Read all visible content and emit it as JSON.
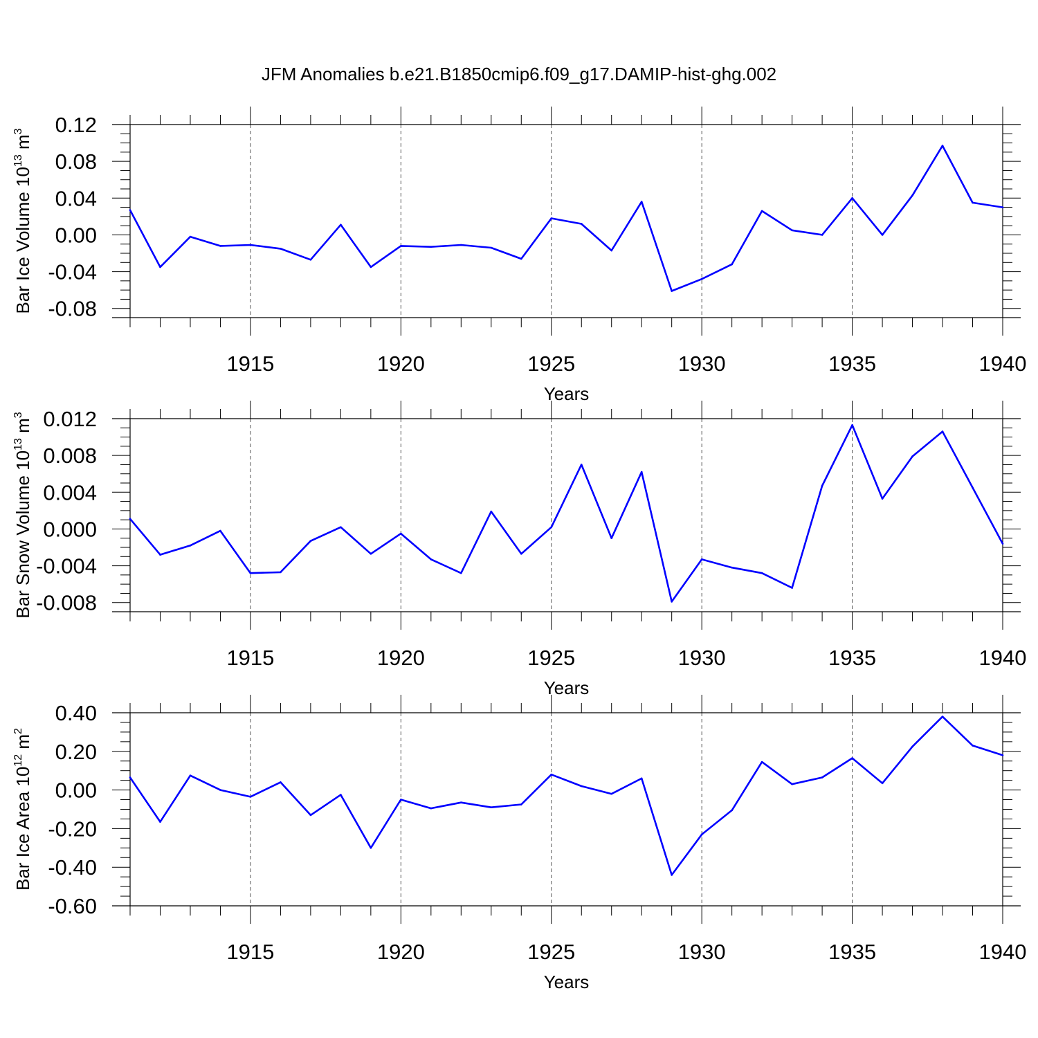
{
  "chart_data": [
    {
      "type": "line",
      "title": "JFM Anomalies b.e21.B1850cmip6.f09_g17.DAMIP-hist-ghg.002",
      "xlabel": "Years",
      "ylabel": "Bar Ice Volume 10",
      "ylabel_exp": "13",
      "ylabel_unit": " m",
      "ylabel_unit_exp": "3",
      "xlim": [
        1911,
        1940
      ],
      "ylim": [
        -0.09,
        0.12
      ],
      "xticks": [
        "1915",
        "1920",
        "1925",
        "1930",
        "1935",
        "1940"
      ],
      "yticks": [
        "-0.08",
        "-0.04",
        "0.00",
        "0.04",
        "0.08",
        "0.12"
      ],
      "grid": "dashed vertical at major x ticks",
      "line_color": "#0000ff",
      "series": [
        {
          "x": [
            1911,
            1912,
            1913,
            1914,
            1915,
            1916,
            1917,
            1918,
            1919,
            1920,
            1921,
            1922,
            1923,
            1924,
            1925,
            1926,
            1927,
            1928,
            1929,
            1930,
            1931,
            1932,
            1933,
            1934,
            1935,
            1936,
            1937,
            1938,
            1939,
            1940
          ],
          "values": [
            0.027,
            -0.035,
            -0.002,
            -0.012,
            -0.011,
            -0.015,
            -0.027,
            0.011,
            -0.035,
            -0.012,
            -0.013,
            -0.011,
            -0.014,
            -0.026,
            0.018,
            0.012,
            -0.017,
            0.036,
            -0.061,
            -0.048,
            -0.032,
            0.026,
            0.005,
            0.0,
            0.04,
            0.0,
            0.043,
            0.097,
            0.035,
            0.03
          ]
        }
      ]
    },
    {
      "type": "line",
      "title": "",
      "xlabel": "Years",
      "ylabel": "Bar Snow Volume 10",
      "ylabel_exp": "13",
      "ylabel_unit": " m",
      "ylabel_unit_exp": "3",
      "xlim": [
        1911,
        1940
      ],
      "ylim": [
        -0.009,
        0.012
      ],
      "xticks": [
        "1915",
        "1920",
        "1925",
        "1930",
        "1935",
        "1940"
      ],
      "yticks": [
        "-0.008",
        "-0.004",
        "0.000",
        "0.004",
        "0.008",
        "0.012"
      ],
      "grid": "dashed vertical at major x ticks",
      "line_color": "#0000ff",
      "series": [
        {
          "x": [
            1911,
            1912,
            1913,
            1914,
            1915,
            1916,
            1917,
            1918,
            1919,
            1920,
            1921,
            1922,
            1923,
            1924,
            1925,
            1926,
            1927,
            1928,
            1929,
            1930,
            1931,
            1932,
            1933,
            1934,
            1935,
            1936,
            1937,
            1938,
            1939,
            1940
          ],
          "values": [
            0.0011,
            -0.0028,
            -0.0018,
            -0.0002,
            -0.0048,
            -0.0047,
            -0.0013,
            0.0002,
            -0.0027,
            -0.0005,
            -0.0033,
            -0.0048,
            0.0019,
            -0.0027,
            0.0002,
            0.007,
            -0.001,
            0.0062,
            -0.0079,
            -0.0033,
            -0.0042,
            -0.0048,
            -0.0064,
            0.0047,
            0.0113,
            0.0033,
            0.0079,
            0.0106,
            0.0045,
            -0.0016
          ]
        }
      ]
    },
    {
      "type": "line",
      "title": "",
      "xlabel": "Years",
      "ylabel": "Bar Ice Area 10",
      "ylabel_exp": "12",
      "ylabel_unit": " m",
      "ylabel_unit_exp": "2",
      "xlim": [
        1911,
        1940
      ],
      "ylim": [
        -0.6,
        0.4
      ],
      "xticks": [
        "1915",
        "1920",
        "1925",
        "1930",
        "1935",
        "1940"
      ],
      "yticks": [
        "-0.60",
        "-0.40",
        "-0.20",
        "0.00",
        "0.20",
        "0.40"
      ],
      "grid": "dashed vertical at major x ticks",
      "line_color": "#0000ff",
      "series": [
        {
          "x": [
            1911,
            1912,
            1913,
            1914,
            1915,
            1916,
            1917,
            1918,
            1919,
            1920,
            1921,
            1922,
            1923,
            1924,
            1925,
            1926,
            1927,
            1928,
            1929,
            1930,
            1931,
            1932,
            1933,
            1934,
            1935,
            1936,
            1937,
            1938,
            1939,
            1940
          ],
          "values": [
            0.065,
            -0.165,
            0.075,
            0.0,
            -0.035,
            0.04,
            -0.13,
            -0.025,
            -0.3,
            -0.05,
            -0.095,
            -0.065,
            -0.09,
            -0.075,
            0.08,
            0.02,
            -0.02,
            0.06,
            -0.44,
            -0.23,
            -0.105,
            0.145,
            0.03,
            0.065,
            0.165,
            0.035,
            0.225,
            0.38,
            0.23,
            0.18
          ]
        }
      ]
    }
  ]
}
